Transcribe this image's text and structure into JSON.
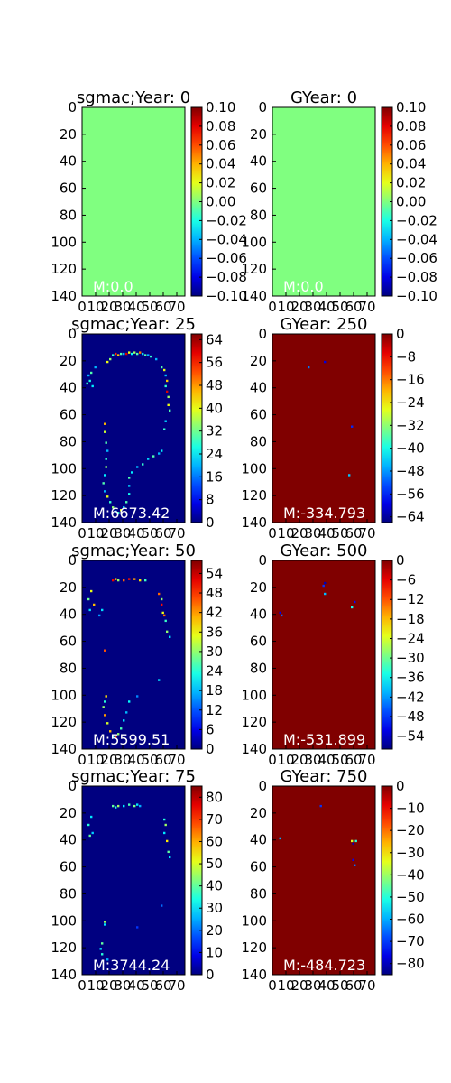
{
  "chart_data": [
    {
      "type": "heatmap",
      "title": "sgmac;Year: 0",
      "annotation": "M:0.0",
      "xlim": [
        0,
        76
      ],
      "ylim": [
        140,
        0
      ],
      "x_ticks": [
        0,
        10,
        20,
        30,
        40,
        50,
        60,
        70
      ],
      "y_ticks": [
        0,
        20,
        40,
        60,
        80,
        100,
        120,
        140
      ],
      "colorbar": {
        "ticks": [
          0.1,
          0.08,
          0.06,
          0.04,
          0.02,
          0.0,
          -0.02,
          -0.04,
          -0.06,
          -0.08,
          -0.1
        ],
        "tick_labels": [
          "0.10",
          "0.08",
          "0.06",
          "0.04",
          "0.02",
          "0.00",
          "−0.02",
          "−0.04",
          "−0.06",
          "−0.08",
          "−0.10"
        ],
        "range": [
          -0.1,
          0.1
        ]
      },
      "colormap": "jet",
      "field": {
        "kind": "constant",
        "value": 0.0
      }
    },
    {
      "type": "heatmap",
      "title": "GYear: 0",
      "annotation": "M:0.0",
      "xlim": [
        0,
        76
      ],
      "ylim": [
        140,
        0
      ],
      "x_ticks": [
        0,
        10,
        20,
        30,
        40,
        50,
        60,
        70
      ],
      "y_ticks": [
        0,
        20,
        40,
        60,
        80,
        100,
        120,
        140
      ],
      "colorbar": {
        "ticks": [
          0.1,
          0.08,
          0.06,
          0.04,
          0.02,
          0.0,
          -0.02,
          -0.04,
          -0.06,
          -0.08,
          -0.1
        ],
        "tick_labels": [
          "0.10",
          "0.08",
          "0.06",
          "0.04",
          "0.02",
          "0.00",
          "−0.02",
          "−0.04",
          "−0.06",
          "−0.08",
          "−0.10"
        ],
        "range": [
          -0.1,
          0.1
        ]
      },
      "colormap": "jet",
      "field": {
        "kind": "constant",
        "value": 0.0
      }
    },
    {
      "type": "heatmap",
      "title": "sgmac;Year: 25",
      "annotation": "M:6673.42",
      "xlim": [
        0,
        76
      ],
      "ylim": [
        140,
        0
      ],
      "x_ticks": [
        0,
        10,
        20,
        30,
        40,
        50,
        60,
        70
      ],
      "y_ticks": [
        0,
        20,
        40,
        60,
        80,
        100,
        120,
        140
      ],
      "colorbar": {
        "ticks": [
          64,
          56,
          48,
          40,
          32,
          24,
          16,
          8,
          0
        ],
        "tick_labels": [
          "64",
          "56",
          "48",
          "40",
          "32",
          "24",
          "16",
          "8",
          "0"
        ],
        "range": [
          0,
          66
        ]
      },
      "colormap": "jet",
      "field": {
        "kind": "sparse",
        "background": 0,
        "points": [
          [
            22,
            15,
            28
          ],
          [
            24,
            14,
            55
          ],
          [
            26,
            15,
            45
          ],
          [
            28,
            14,
            30
          ],
          [
            30,
            14,
            20
          ],
          [
            32,
            14,
            60
          ],
          [
            34,
            13,
            40
          ],
          [
            36,
            14,
            25
          ],
          [
            38,
            13,
            35
          ],
          [
            40,
            14,
            30
          ],
          [
            42,
            13,
            50
          ],
          [
            44,
            14,
            22
          ],
          [
            46,
            15,
            30
          ],
          [
            48,
            15,
            20
          ],
          [
            50,
            16,
            28
          ],
          [
            54,
            18,
            20
          ],
          [
            58,
            24,
            30
          ],
          [
            60,
            26,
            40
          ],
          [
            61,
            30,
            20
          ],
          [
            62,
            34,
            45
          ],
          [
            61,
            38,
            28
          ],
          [
            62,
            42,
            60
          ],
          [
            63,
            46,
            35
          ],
          [
            63,
            52,
            40
          ],
          [
            64,
            56,
            30
          ],
          [
            61,
            64,
            22
          ],
          [
            60,
            70,
            28
          ],
          [
            58,
            86,
            24
          ],
          [
            56,
            88,
            20
          ],
          [
            52,
            90,
            30
          ],
          [
            48,
            92,
            22
          ],
          [
            44,
            96,
            28
          ],
          [
            40,
            98,
            20
          ],
          [
            36,
            102,
            24
          ],
          [
            34,
            106,
            30
          ],
          [
            34,
            112,
            22
          ],
          [
            34,
            118,
            26
          ],
          [
            32,
            124,
            30
          ],
          [
            30,
            128,
            22
          ],
          [
            28,
            130,
            40
          ],
          [
            26,
            132,
            28
          ],
          [
            24,
            131,
            20
          ],
          [
            22,
            128,
            34
          ],
          [
            20,
            124,
            28
          ],
          [
            18,
            120,
            40
          ],
          [
            16,
            116,
            20
          ],
          [
            15,
            110,
            30
          ],
          [
            16,
            104,
            24
          ],
          [
            17,
            98,
            34
          ],
          [
            17,
            92,
            28
          ],
          [
            18,
            86,
            20
          ],
          [
            17,
            80,
            30
          ],
          [
            16,
            72,
            38
          ],
          [
            16,
            66,
            46
          ],
          [
            9,
            24,
            20
          ],
          [
            6,
            28,
            30
          ],
          [
            5,
            34,
            26
          ],
          [
            7,
            38,
            24
          ],
          [
            4,
            30,
            20
          ],
          [
            3,
            36,
            28
          ],
          [
            20,
            18,
            34
          ],
          [
            18,
            20,
            40
          ]
        ]
      }
    },
    {
      "type": "heatmap",
      "title": "GYear: 250",
      "annotation": "M:-334.793",
      "xlim": [
        0,
        76
      ],
      "ylim": [
        140,
        0
      ],
      "x_ticks": [
        0,
        10,
        20,
        30,
        40,
        50,
        60,
        70
      ],
      "y_ticks": [
        0,
        20,
        40,
        60,
        80,
        100,
        120,
        140
      ],
      "colorbar": {
        "ticks": [
          0,
          -8,
          -16,
          -24,
          -32,
          -40,
          -48,
          -56,
          -64
        ],
        "tick_labels": [
          "0",
          "−8",
          "−16",
          "−24",
          "−32",
          "−40",
          "−48",
          "−56",
          "−64"
        ],
        "range": [
          -66,
          0
        ]
      },
      "colormap": "jet",
      "field": {
        "kind": "sparse",
        "background": 0,
        "points": [
          [
            38,
            20,
            -60
          ],
          [
            26,
            24,
            -50
          ],
          [
            58,
            68,
            -55
          ],
          [
            56,
            104,
            -45
          ]
        ]
      }
    },
    {
      "type": "heatmap",
      "title": "sgmac;Year: 50",
      "annotation": "M:5599.51",
      "xlim": [
        0,
        76
      ],
      "ylim": [
        140,
        0
      ],
      "x_ticks": [
        0,
        10,
        20,
        30,
        40,
        50,
        60,
        70
      ],
      "y_ticks": [
        0,
        20,
        40,
        60,
        80,
        100,
        120,
        140
      ],
      "colorbar": {
        "ticks": [
          54,
          48,
          42,
          36,
          30,
          24,
          18,
          12,
          6,
          0
        ],
        "tick_labels": [
          "54",
          "48",
          "42",
          "36",
          "30",
          "24",
          "18",
          "12",
          "6",
          "0"
        ],
        "range": [
          0,
          58
        ]
      },
      "colormap": "jet",
      "field": {
        "kind": "sparse",
        "background": 0,
        "points": [
          [
            22,
            14,
            52
          ],
          [
            24,
            13,
            40
          ],
          [
            26,
            14,
            30
          ],
          [
            30,
            14,
            45
          ],
          [
            34,
            13,
            50
          ],
          [
            38,
            13,
            42
          ],
          [
            42,
            14,
            38
          ],
          [
            46,
            14,
            25
          ],
          [
            56,
            24,
            45
          ],
          [
            58,
            28,
            30
          ],
          [
            58,
            32,
            50
          ],
          [
            59,
            38,
            35
          ],
          [
            60,
            40,
            45
          ],
          [
            61,
            44,
            25
          ],
          [
            62,
            52,
            30
          ],
          [
            64,
            56,
            20
          ],
          [
            56,
            88,
            20
          ],
          [
            40,
            100,
            15
          ],
          [
            34,
            104,
            22
          ],
          [
            32,
            112,
            18
          ],
          [
            30,
            118,
            20
          ],
          [
            28,
            124,
            26
          ],
          [
            26,
            128,
            30
          ],
          [
            24,
            130,
            48
          ],
          [
            22,
            130,
            22
          ],
          [
            20,
            126,
            40
          ],
          [
            18,
            120,
            34
          ],
          [
            16,
            114,
            42
          ],
          [
            15,
            108,
            30
          ],
          [
            16,
            104,
            24
          ],
          [
            17,
            100,
            38
          ],
          [
            16,
            66,
            46
          ],
          [
            6,
            22,
            35
          ],
          [
            4,
            28,
            28
          ],
          [
            8,
            32,
            40
          ],
          [
            5,
            36,
            20
          ],
          [
            14,
            36,
            20
          ],
          [
            12,
            40,
            16
          ]
        ]
      }
    },
    {
      "type": "heatmap",
      "title": "GYear: 500",
      "annotation": "M:-531.899",
      "xlim": [
        0,
        76
      ],
      "ylim": [
        140,
        0
      ],
      "x_ticks": [
        0,
        10,
        20,
        30,
        40,
        50,
        60,
        70
      ],
      "y_ticks": [
        0,
        20,
        40,
        60,
        80,
        100,
        120,
        140
      ],
      "colorbar": {
        "ticks": [
          0,
          -6,
          -12,
          -18,
          -24,
          -30,
          -36,
          -42,
          -48,
          -54
        ],
        "tick_labels": [
          "0",
          "−6",
          "−12",
          "−18",
          "−24",
          "−30",
          "−36",
          "−42",
          "−48",
          "−54"
        ],
        "range": [
          -58,
          0
        ]
      },
      "colormap": "jet",
      "field": {
        "kind": "sparse",
        "background": 0,
        "points": [
          [
            38,
            16,
            -55
          ],
          [
            37,
            18,
            -48
          ],
          [
            5,
            38,
            -52
          ],
          [
            6,
            40,
            -45
          ],
          [
            38,
            24,
            -40
          ],
          [
            60,
            30,
            -50
          ],
          [
            58,
            34,
            -35
          ]
        ]
      }
    },
    {
      "type": "heatmap",
      "title": "sgmac;Year: 75",
      "annotation": "M:3744.24",
      "xlim": [
        0,
        76
      ],
      "ylim": [
        140,
        0
      ],
      "x_ticks": [
        0,
        10,
        20,
        30,
        40,
        50,
        60,
        70
      ],
      "y_ticks": [
        0,
        20,
        40,
        60,
        80,
        100,
        120,
        140
      ],
      "colorbar": {
        "ticks": [
          80,
          70,
          60,
          50,
          40,
          30,
          20,
          10,
          0
        ],
        "tick_labels": [
          "80",
          "70",
          "60",
          "50",
          "40",
          "30",
          "20",
          "10",
          "0"
        ],
        "range": [
          0,
          85
        ]
      },
      "colormap": "jet",
      "field": {
        "kind": "sparse",
        "background": 0,
        "points": [
          [
            22,
            14,
            40
          ],
          [
            24,
            15,
            35
          ],
          [
            26,
            14,
            45
          ],
          [
            30,
            14,
            30
          ],
          [
            34,
            13,
            38
          ],
          [
            38,
            14,
            42
          ],
          [
            40,
            13,
            30
          ],
          [
            42,
            14,
            25
          ],
          [
            60,
            24,
            35
          ],
          [
            61,
            28,
            45
          ],
          [
            60,
            34,
            30
          ],
          [
            62,
            40,
            55
          ],
          [
            63,
            48,
            40
          ],
          [
            64,
            52,
            30
          ],
          [
            58,
            88,
            20
          ],
          [
            40,
            104,
            15
          ],
          [
            14,
            116,
            40
          ],
          [
            13,
            120,
            30
          ],
          [
            14,
            124,
            35
          ],
          [
            18,
            128,
            25
          ],
          [
            6,
            22,
            30
          ],
          [
            4,
            28,
            35
          ],
          [
            7,
            34,
            28
          ],
          [
            5,
            36,
            40
          ],
          [
            16,
            100,
            45
          ],
          [
            16,
            102,
            30
          ]
        ]
      }
    },
    {
      "type": "heatmap",
      "title": "GYear: 750",
      "annotation": "M:-484.723",
      "xlim": [
        0,
        76
      ],
      "ylim": [
        140,
        0
      ],
      "x_ticks": [
        0,
        10,
        20,
        30,
        40,
        50,
        60,
        70
      ],
      "y_ticks": [
        0,
        20,
        40,
        60,
        80,
        100,
        120,
        140
      ],
      "colorbar": {
        "ticks": [
          0,
          -10,
          -20,
          -30,
          -40,
          -50,
          -60,
          -70,
          -80
        ],
        "tick_labels": [
          "0",
          "−10",
          "−20",
          "−30",
          "−40",
          "−50",
          "−60",
          "−70",
          "−80"
        ],
        "range": [
          -85,
          0
        ]
      },
      "colormap": "jet",
      "field": {
        "kind": "sparse",
        "background": 0,
        "points": [
          [
            35,
            14,
            -70
          ],
          [
            5,
            38,
            -60
          ],
          [
            58,
            40,
            -35
          ],
          [
            59,
            42,
            -80
          ],
          [
            61,
            40,
            -50
          ],
          [
            59,
            54,
            -75
          ],
          [
            60,
            58,
            -65
          ]
        ]
      }
    }
  ]
}
